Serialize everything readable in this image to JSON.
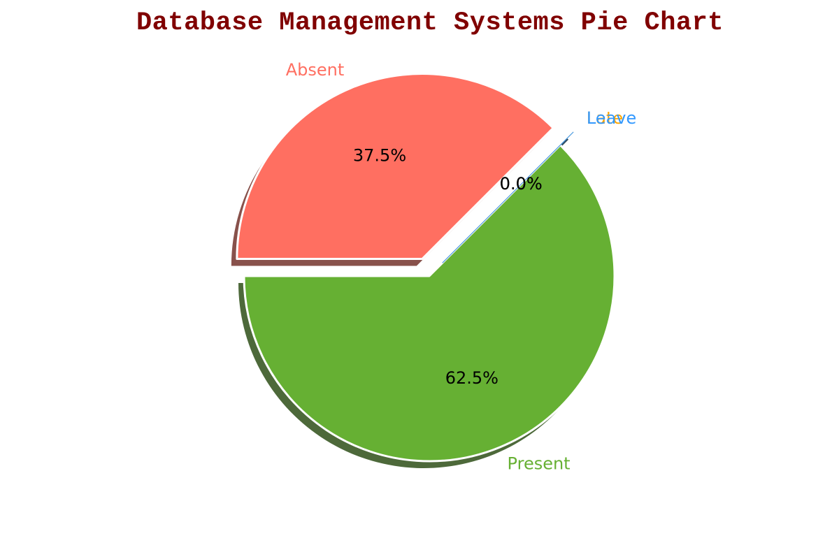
{
  "chart_data": {
    "type": "pie",
    "title": "Database Management Systems Pie Chart",
    "slices": [
      {
        "label": "Present",
        "value": 62.5,
        "pct_label": "62.5%",
        "color": "#66b033",
        "exploded": false
      },
      {
        "label": "Absent",
        "value": 37.5,
        "pct_label": "37.5%",
        "color": "#ff6f61",
        "exploded": true
      },
      {
        "label": "Late",
        "value": 0.0,
        "pct_label": "0.0%",
        "color": "#ffa500",
        "exploded": true
      },
      {
        "label": "Leave",
        "value": 0.0,
        "pct_label": "0.0%",
        "color": "#3399ff",
        "exploded": true
      }
    ],
    "start_angle_deg": 45,
    "direction": "clockwise",
    "shadow": true
  }
}
